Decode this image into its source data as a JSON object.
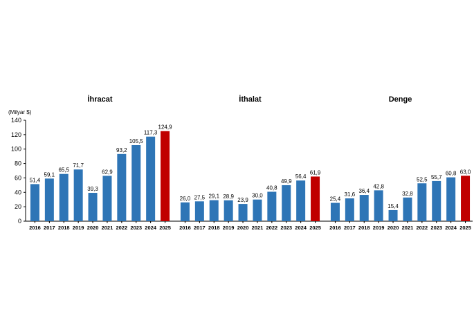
{
  "chart_data": {
    "type": "bar",
    "unit_label": "(Milyar $)",
    "ylim": [
      0,
      140
    ],
    "yticks": [
      "0",
      "20",
      "40",
      "60",
      "80",
      "100",
      "120",
      "140"
    ],
    "grid": false,
    "colors": {
      "default": "#2E75B6",
      "highlight": "#C00000"
    },
    "highlight_category": "2025",
    "categories": [
      "2016",
      "2017",
      "2018",
      "2019",
      "2020",
      "2021",
      "2022",
      "2023",
      "2024",
      "2025"
    ],
    "series": [
      {
        "name": "İhracat",
        "values": [
          51.4,
          59.1,
          65.5,
          71.7,
          39.3,
          62.9,
          93.2,
          105.5,
          117.3,
          124.9
        ],
        "labels": [
          "51,4",
          "59,1",
          "65,5",
          "71,7",
          "39,3",
          "62,9",
          "93,2",
          "105,5",
          "117,3",
          "124,9"
        ]
      },
      {
        "name": "İthalat",
        "values": [
          26.0,
          27.5,
          29.1,
          28.9,
          23.9,
          30.0,
          40.8,
          49.9,
          56.4,
          61.9
        ],
        "labels": [
          "26,0",
          "27,5",
          "29,1",
          "28,9",
          "23,9",
          "30,0",
          "40,8",
          "49,9",
          "56,4",
          "61,9"
        ]
      },
      {
        "name": "Denge",
        "values": [
          25.4,
          31.6,
          36.4,
          42.8,
          15.4,
          32.8,
          52.5,
          55.7,
          60.8,
          63.0
        ],
        "labels": [
          "25,4",
          "31,6",
          "36,4",
          "42,8",
          "15,4",
          "32,8",
          "52,5",
          "55,7",
          "60,8",
          "63,0"
        ]
      }
    ]
  }
}
